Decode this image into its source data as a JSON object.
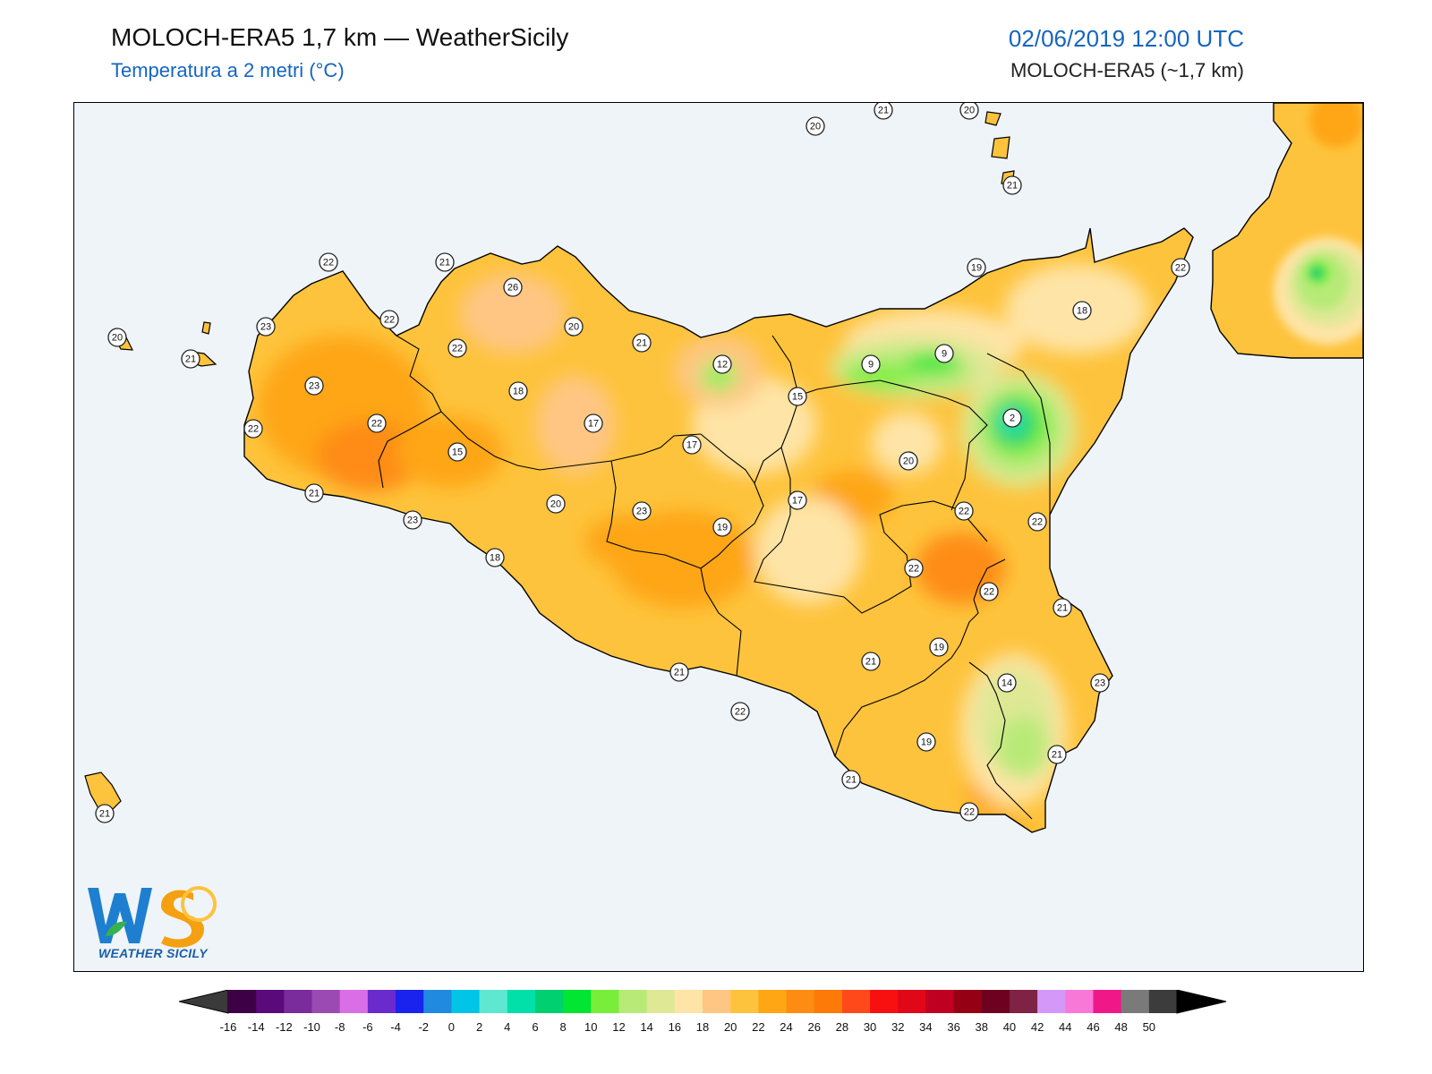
{
  "header": {
    "title": "MOLOCH-ERA5 1,7 km — WeatherSicily",
    "subtitle": "Temperatura a 2 metri (°C)",
    "datetime": "02/06/2019 12:00 UTC",
    "model": "MOLOCH-ERA5 (~1,7 km)"
  },
  "logo": {
    "initials": "WS",
    "name": "WEATHER SICILY"
  },
  "colorbar": {
    "ticks": [
      "-16",
      "-14",
      "-12",
      "-10",
      "-8",
      "-6",
      "-4",
      "-2",
      "0",
      "2",
      "4",
      "6",
      "8",
      "10",
      "12",
      "14",
      "16",
      "18",
      "20",
      "22",
      "24",
      "26",
      "28",
      "30",
      "32",
      "34",
      "36",
      "38",
      "40",
      "42",
      "44",
      "46",
      "48",
      "50"
    ],
    "colors": [
      "#3d0045",
      "#5a0a7a",
      "#7a2c9c",
      "#9b4ab4",
      "#da6ee6",
      "#6a2acc",
      "#1a22ee",
      "#1f8ae0",
      "#00c5e6",
      "#5ee8d2",
      "#00e0a8",
      "#00d070",
      "#00e632",
      "#78ee3a",
      "#b8ea78",
      "#dfe895",
      "#fee4a6",
      "#fec682",
      "#fec33c",
      "#fea614",
      "#fe8c12",
      "#fe7a08",
      "#fe4a1a",
      "#f81010",
      "#e00818",
      "#c00020",
      "#960014",
      "#6e0020",
      "#7e2246",
      "#d498f8",
      "#f878d8",
      "#f01888",
      "#7a7a7a",
      "#3c3c3c"
    ]
  },
  "stations": [
    {
      "v": "20",
      "c": "#fff"
    },
    {
      "v": "21",
      "c": "#fff"
    },
    {
      "v": "20",
      "c": "#fff"
    },
    {
      "v": "21",
      "c": "#fff"
    },
    {
      "v": "22",
      "c": "#fff"
    },
    {
      "v": "21",
      "c": "#fff"
    },
    {
      "v": "26",
      "c": "#fff"
    },
    {
      "v": "22",
      "c": "#fff"
    },
    {
      "v": "23",
      "c": "#fff"
    },
    {
      "v": "20",
      "c": "#fff"
    },
    {
      "v": "21",
      "c": "#fff"
    },
    {
      "v": "22",
      "c": "#fff"
    },
    {
      "v": "20",
      "c": "#fff"
    },
    {
      "v": "21",
      "c": "#fff"
    },
    {
      "v": "12",
      "c": "#fff"
    },
    {
      "v": "23",
      "c": "#fff"
    },
    {
      "v": "18",
      "c": "#fff"
    },
    {
      "v": "22",
      "c": "#fff"
    },
    {
      "v": "17",
      "c": "#fff"
    },
    {
      "v": "15",
      "c": "#fff"
    },
    {
      "v": "17",
      "c": "#fff"
    },
    {
      "v": "22",
      "c": "#fff"
    },
    {
      "v": "15",
      "c": "#fff"
    },
    {
      "v": "9",
      "c": "#fff"
    },
    {
      "v": "9",
      "c": "#fff"
    },
    {
      "v": "19",
      "c": "#fff"
    },
    {
      "v": "18",
      "c": "#fff"
    },
    {
      "v": "22",
      "c": "#fff"
    },
    {
      "v": "2",
      "c": "#fff"
    },
    {
      "v": "20",
      "c": "#fff"
    },
    {
      "v": "20",
      "c": "#fff"
    },
    {
      "v": "23",
      "c": "#fff"
    },
    {
      "v": "19",
      "c": "#fff"
    },
    {
      "v": "17",
      "c": "#fff"
    },
    {
      "v": "22",
      "c": "#fff"
    },
    {
      "v": "22",
      "c": "#fff"
    },
    {
      "v": "21",
      "c": "#fff"
    },
    {
      "v": "23",
      "c": "#fff"
    },
    {
      "v": "18",
      "c": "#fff"
    },
    {
      "v": "22",
      "c": "#fff"
    },
    {
      "v": "22",
      "c": "#fff"
    },
    {
      "v": "21",
      "c": "#fff"
    },
    {
      "v": "19",
      "c": "#fff"
    },
    {
      "v": "21",
      "c": "#fff"
    },
    {
      "v": "14",
      "c": "#fff"
    },
    {
      "v": "23",
      "c": "#fff"
    },
    {
      "v": "22",
      "c": "#fff"
    },
    {
      "v": "19",
      "c": "#fff"
    },
    {
      "v": "21",
      "c": "#fff"
    },
    {
      "v": "21",
      "c": "#fff"
    },
    {
      "v": "22",
      "c": "#fff"
    },
    {
      "v": "21",
      "c": "#fff"
    },
    {
      "v": "21",
      "c": "#fff"
    }
  ]
}
